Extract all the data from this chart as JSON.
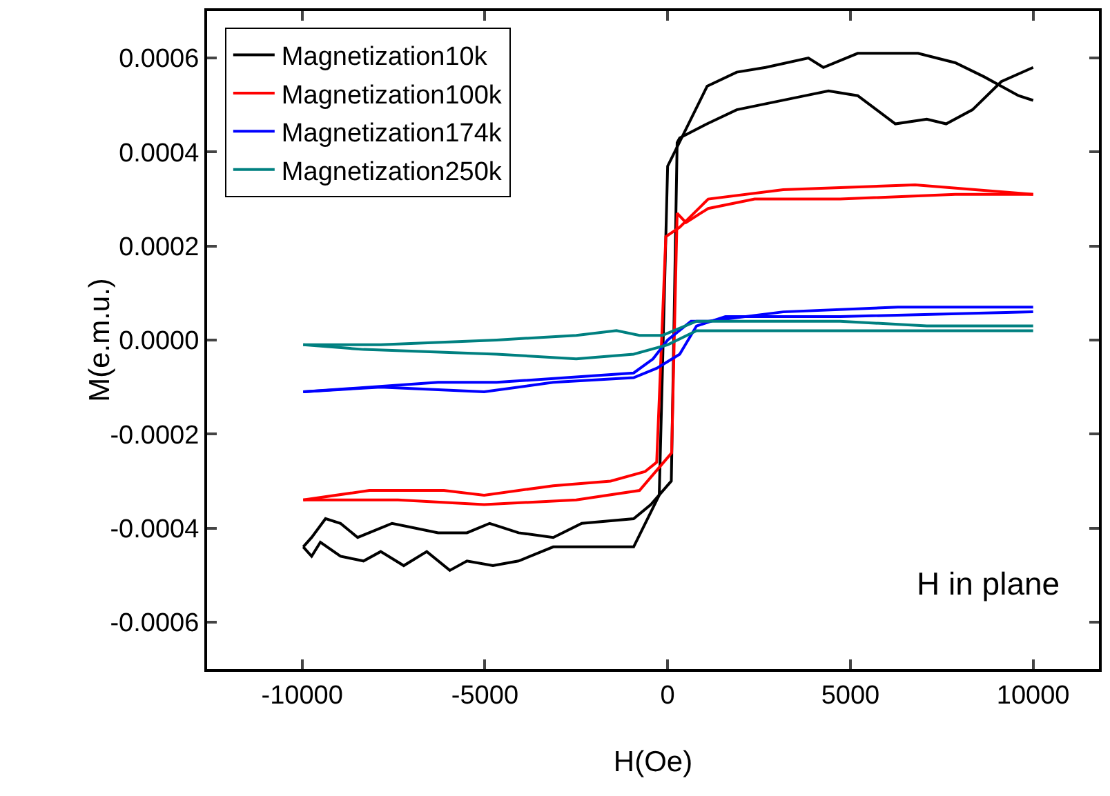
{
  "chart_data": {
    "type": "line",
    "xlabel": "H(Oe)",
    "ylabel": "M(e.m.u.)",
    "xlim": [
      -12600,
      11800
    ],
    "xticks": [
      -10000,
      -5000,
      0,
      5000,
      10000
    ],
    "ylim": [
      -0.0007,
      0.0007
    ],
    "yticks": [
      {
        "value": -0.0006,
        "label": "-0.0006"
      },
      {
        "value": -0.0004,
        "label": "-0.0004"
      },
      {
        "value": -0.0002,
        "label": "-0.0002"
      },
      {
        "value": 0,
        "label": "0.0000"
      },
      {
        "value": 0.0002,
        "label": "0.0002"
      },
      {
        "value": 0.0004,
        "label": "0.0004"
      },
      {
        "value": 0.0006,
        "label": "0.0006"
      }
    ],
    "grid": false,
    "legend": "top left",
    "marker": "none",
    "line_style": "solid",
    "annotations": [
      "H in plane"
    ],
    "series": [
      {
        "name": "Magnetization10k",
        "color": "#000000",
        "x": [
          -9970,
          -9740,
          -9500,
          -8950,
          -8320,
          -7850,
          -7220,
          -6590,
          -5960,
          -5490,
          -4780,
          -4080,
          -3130,
          -2350,
          -930,
          -230,
          0,
          1080,
          1890,
          2680,
          3850,
          4260,
          5200,
          6850,
          7870,
          8660,
          9600,
          10000
        ],
        "values": [
          -0.00044,
          -0.00046,
          -0.00043,
          -0.00046,
          -0.00047,
          -0.00045,
          -0.00048,
          -0.00045,
          -0.00049,
          -0.00047,
          -0.00048,
          -0.00047,
          -0.00044,
          -0.00044,
          -0.00044,
          -0.00033,
          0.00037,
          0.00054,
          0.00057,
          0.00058,
          0.0006,
          0.00058,
          0.00061,
          0.00061,
          0.00059,
          0.00056,
          0.00052,
          0.00051
        ]
      },
      {
        "color": "#000000",
        "x": [
          -9970,
          -9740,
          -9360,
          -8950,
          -8480,
          -7540,
          -6280,
          -5490,
          -4870,
          -4080,
          -3130,
          -2350,
          -930,
          -460,
          100,
          260,
          330,
          1080,
          1890,
          3770,
          4400,
          5200,
          6230,
          7090,
          7620,
          8340,
          9130,
          10000
        ],
        "values": [
          -0.00044,
          -0.00042,
          -0.00038,
          -0.00039,
          -0.00042,
          -0.00039,
          -0.00041,
          -0.00041,
          -0.00039,
          -0.00041,
          -0.00042,
          -0.00039,
          -0.00038,
          -0.00035,
          -0.0003,
          0.00042,
          0.00043,
          0.00046,
          0.00049,
          0.00052,
          0.00053,
          0.00052,
          0.00046,
          0.00047,
          0.00046,
          0.00049,
          0.00055,
          0.00058
        ]
      },
      {
        "name": "Magnetization100k",
        "color": "#ff0000",
        "x": [
          -9970,
          -8160,
          -6120,
          -5020,
          -3130,
          -1560,
          -620,
          -300,
          -50,
          330,
          1110,
          3160,
          6770,
          10000
        ],
        "values": [
          -0.00034,
          -0.00032,
          -0.00032,
          -0.00033,
          -0.00031,
          -0.0003,
          -0.00028,
          -0.00026,
          0.00022,
          0.00024,
          0.0003,
          0.00032,
          0.00033,
          0.00031
        ]
      },
      {
        "color": "#ff0000",
        "x": [
          -9970,
          -7380,
          -5020,
          -2500,
          -770,
          0,
          110,
          260,
          500,
          1110,
          2380,
          4720,
          7870,
          10000
        ],
        "values": [
          -0.00034,
          -0.00034,
          -0.00035,
          -0.00034,
          -0.00032,
          -0.00025,
          -0.00024,
          0.00027,
          0.00025,
          0.00028,
          0.0003,
          0.0003,
          0.00031,
          0.00031
        ]
      },
      {
        "name": "Magnetization174k",
        "color": "#0000ff",
        "x": [
          -9970,
          -7850,
          -5020,
          -3130,
          -930,
          -300,
          330,
          790,
          1580,
          4720,
          10000
        ],
        "values": [
          -0.00011,
          -0.0001,
          -0.00011,
          -9e-05,
          -8e-05,
          -6e-05,
          -3e-05,
          3e-05,
          5e-05,
          5e-05,
          6e-05
        ]
      },
      {
        "color": "#0000ff",
        "x": [
          -9970,
          -6280,
          -4680,
          -930,
          -400,
          0,
          640,
          1110,
          3160,
          6300,
          10000
        ],
        "values": [
          -0.00011,
          -9e-05,
          -9e-05,
          -7e-05,
          -4e-05,
          0,
          4e-05,
          4e-05,
          6e-05,
          7e-05,
          7e-05
        ]
      },
      {
        "name": "Magnetization250k",
        "color": "#008080",
        "x": [
          -9970,
          -7850,
          -4680,
          -2500,
          -1400,
          -770,
          -140,
          790,
          4720,
          7090,
          10000
        ],
        "values": [
          -1e-05,
          -1e-05,
          0,
          1e-05,
          2e-05,
          1e-05,
          1e-05,
          4e-05,
          4e-05,
          3e-05,
          3e-05
        ]
      },
      {
        "color": "#008080",
        "x": [
          -9970,
          -8320,
          -4680,
          -2500,
          -930,
          0,
          790,
          4720,
          10000
        ],
        "values": [
          -1e-05,
          -2e-05,
          -3e-05,
          -4e-05,
          -3e-05,
          -1e-05,
          2e-05,
          2e-05,
          2e-05
        ]
      }
    ]
  }
}
